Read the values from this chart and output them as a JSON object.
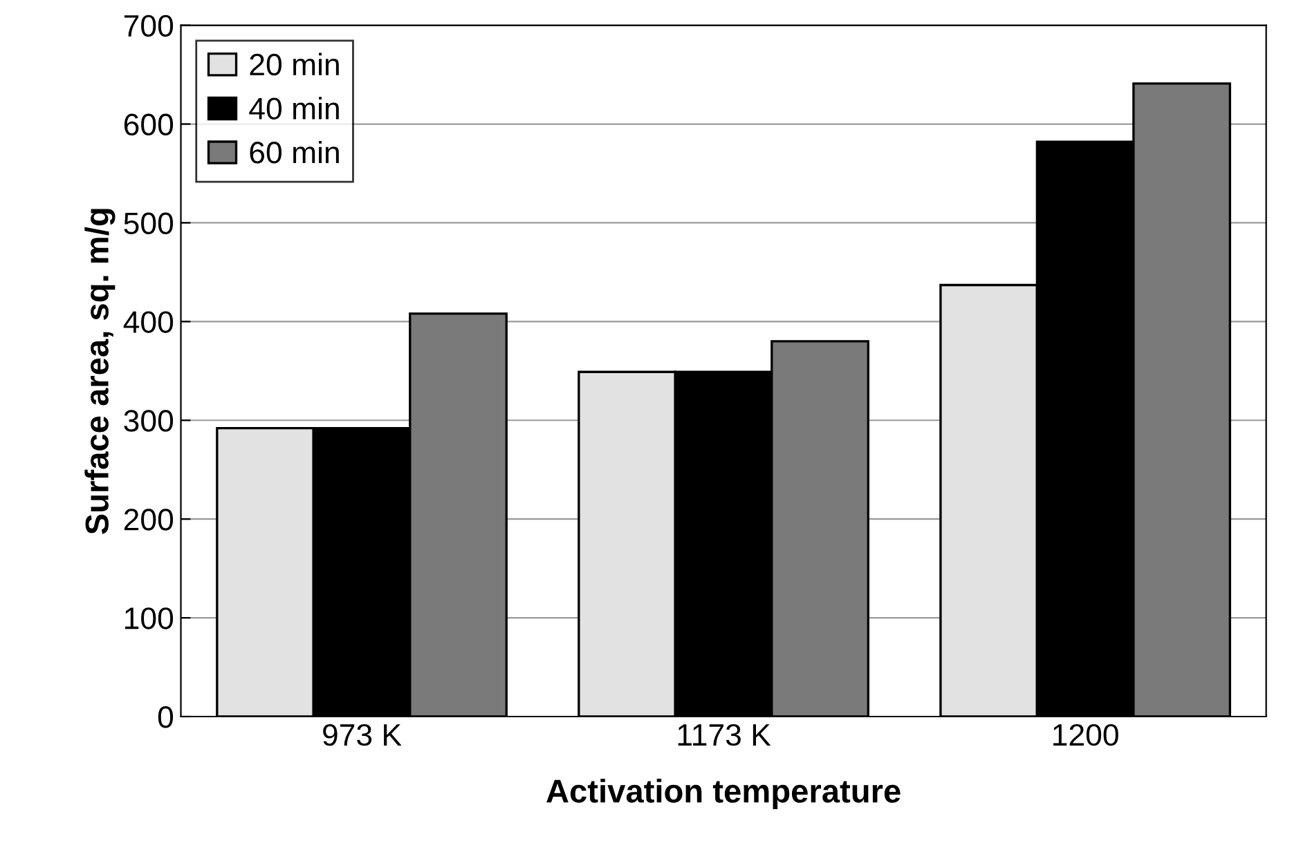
{
  "chart_data": {
    "type": "bar",
    "xlabel": "Activation temperature",
    "ylabel": "Surface area, sq. m/g",
    "categories": [
      "973 K",
      "1173 K",
      "1200"
    ],
    "series": [
      {
        "name": "20 min",
        "color": "#e2e2e2",
        "values": [
          292,
          349,
          437
        ]
      },
      {
        "name": "40 min",
        "color": "#000000",
        "values": [
          292,
          349,
          582
        ]
      },
      {
        "name": "60 min",
        "color": "#7a7a7a",
        "values": [
          408,
          380,
          641
        ]
      }
    ],
    "ylim": [
      0,
      700
    ],
    "yticks": [
      0,
      100,
      200,
      300,
      400,
      500,
      600,
      700
    ],
    "grid": "y",
    "legend": "top left"
  }
}
